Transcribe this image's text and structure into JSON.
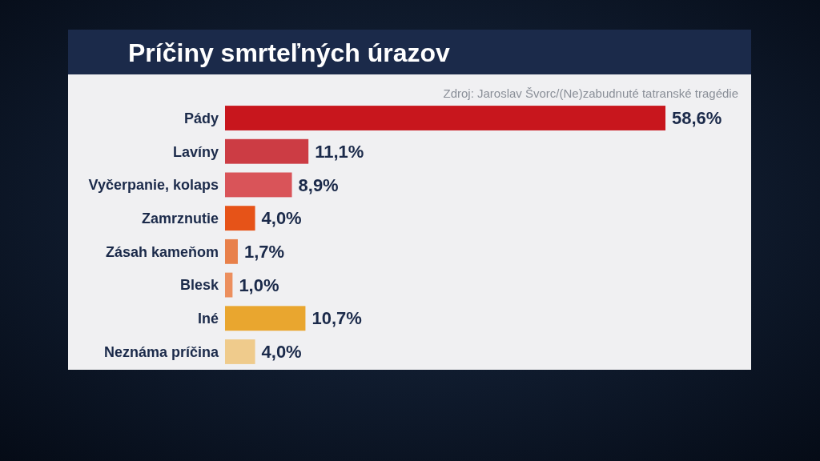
{
  "chart_data": {
    "type": "bar",
    "orientation": "horizontal",
    "title": "Príčiny smrteľných úrazov",
    "annotations": [
      "Zdroj: Jaroslav Švorc/(Ne)zabudnuté tatranské tragédie"
    ],
    "categories": [
      "Pády",
      "Lavíny",
      "Vyčerpanie, kolaps",
      "Zamrznutie",
      "Zásah kameňom",
      "Blesk",
      "Iné",
      "Neznáma príčina"
    ],
    "values": [
      58.6,
      11.1,
      8.9,
      4.0,
      1.7,
      1.0,
      10.7,
      4.0
    ],
    "value_labels": [
      "58,6%",
      "11,1%",
      "8,9%",
      "4,0%",
      "1,7%",
      "1,0%",
      "10,7%",
      "4,0%"
    ],
    "colors": [
      "#c8161d",
      "#cc3c44",
      "#d95459",
      "#e65318",
      "#e8804a",
      "#ec8f5e",
      "#e9a62f",
      "#efcb8c"
    ]
  }
}
